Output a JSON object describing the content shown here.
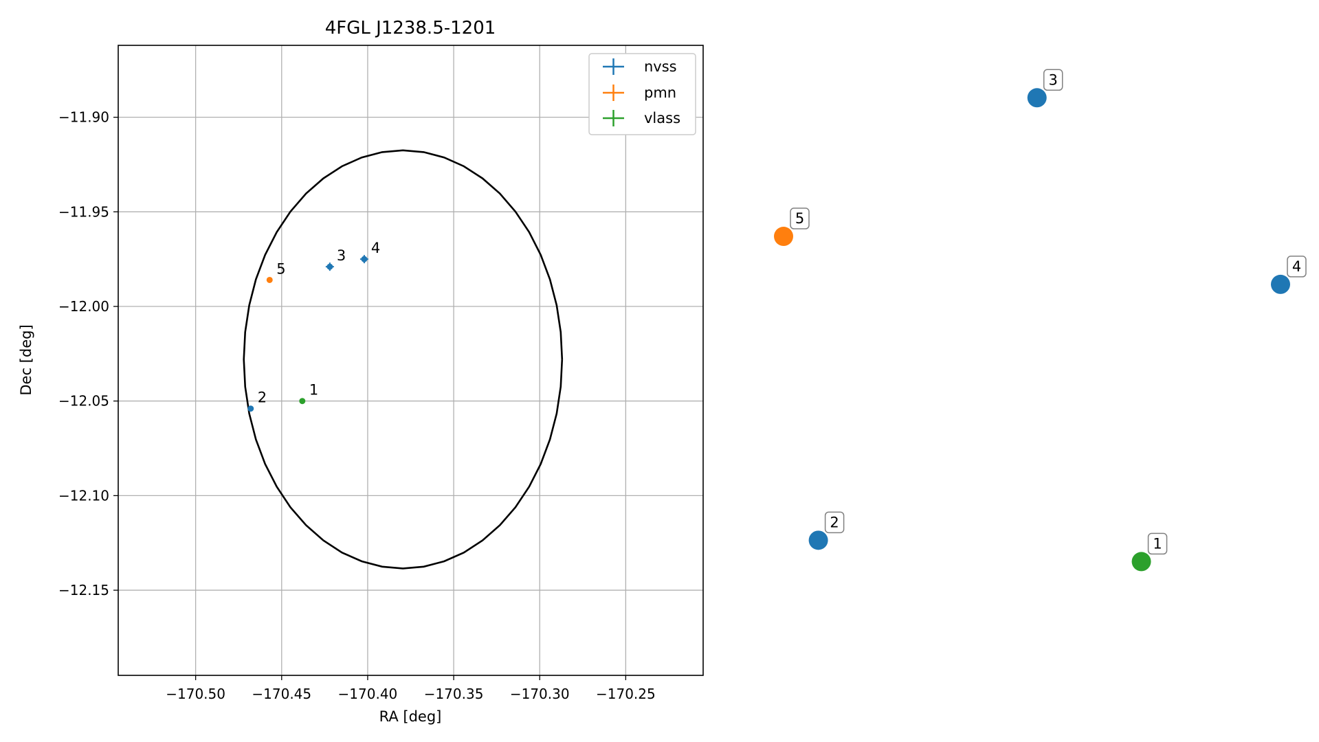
{
  "chart_data": [
    {
      "type": "scatter",
      "title": "4FGL J1238.5-1201",
      "xlabel": "RA [deg]",
      "ylabel": "Dec [deg]",
      "xlim": [
        -170.545,
        -170.205
      ],
      "ylim": [
        -12.195,
        -11.862
      ],
      "xticks": [
        -170.5,
        -170.45,
        -170.4,
        -170.35,
        -170.3,
        -170.25
      ],
      "xtick_labels": [
        "−170.50",
        "−170.45",
        "−170.40",
        "−170.35",
        "−170.30",
        "−170.25"
      ],
      "yticks": [
        -11.9,
        -11.95,
        -12.0,
        -12.05,
        -12.1,
        -12.15
      ],
      "ytick_labels": [
        "−11.90",
        "−11.95",
        "−12.00",
        "−12.05",
        "−12.10",
        "−12.15"
      ],
      "grid": true,
      "legend_position": "top-right",
      "series": [
        {
          "name": "nvss",
          "color": "#1f77b4",
          "points": [
            {
              "id": "2",
              "x": -170.468,
              "y": -12.054
            },
            {
              "id": "3",
              "x": -170.422,
              "y": -11.979
            },
            {
              "id": "4",
              "x": -170.402,
              "y": -11.975
            }
          ]
        },
        {
          "name": "pmn",
          "color": "#ff7f0e",
          "points": [
            {
              "id": "5",
              "x": -170.457,
              "y": -11.986
            }
          ]
        },
        {
          "name": "vlass",
          "color": "#2ca02c",
          "points": [
            {
              "id": "1",
              "x": -170.438,
              "y": -12.05
            }
          ]
        }
      ],
      "ellipse": {
        "center": [
          -170.3795,
          -12.028
        ],
        "semi_axis_ra": 0.0925,
        "semi_axis_dec": 0.1105,
        "color": "#000000"
      }
    },
    {
      "type": "scatter",
      "points": [
        {
          "id": "1",
          "color": "#2ca02c",
          "x": 0.72,
          "y": 0.1
        },
        {
          "id": "2",
          "color": "#1f77b4",
          "x": 0.07,
          "y": 0.14
        },
        {
          "id": "3",
          "color": "#1f77b4",
          "x": 0.51,
          "y": 0.97
        },
        {
          "id": "4",
          "color": "#1f77b4",
          "x": 1.0,
          "y": 0.62
        },
        {
          "id": "5",
          "color": "#ff7f0e",
          "x": 0.0,
          "y": 0.71
        }
      ]
    }
  ]
}
